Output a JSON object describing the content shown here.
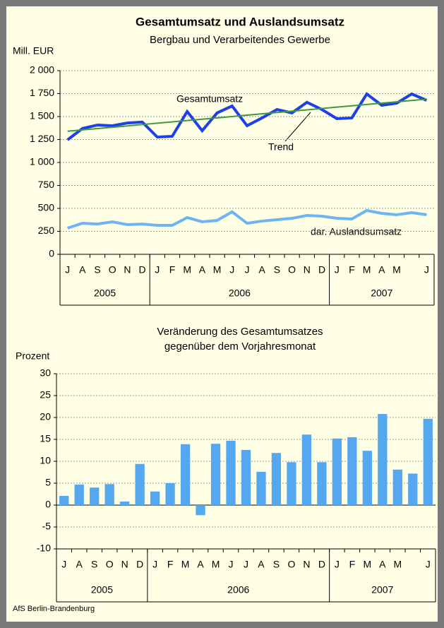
{
  "chart_data": [
    {
      "type": "line",
      "title": "Gesamtumsatz und Auslandsumsatz",
      "subtitle": "Bergbau und Verarbeitendes Gewerbe",
      "y_label": "Mill. EUR",
      "categories": [
        "J",
        "A",
        "S",
        "O",
        "N",
        "D",
        "J",
        "F",
        "M",
        "A",
        "M",
        "J",
        "J",
        "A",
        "S",
        "O",
        "N",
        "D",
        "J",
        "F",
        "M",
        "A",
        "M",
        null,
        "J"
      ],
      "category_groups": [
        {
          "label": "2005",
          "span": 6
        },
        {
          "label": "2006",
          "span": 12
        },
        {
          "label": "2007",
          "span": 7
        }
      ],
      "series": [
        {
          "name": "Gesamtumsatz",
          "color": "#1f3fe8",
          "width": 4,
          "values": [
            1246,
            1370,
            1408,
            1400,
            1430,
            1440,
            1277,
            1285,
            1555,
            1346,
            1540,
            1615,
            1400,
            1485,
            1577,
            1540,
            1655,
            1577,
            1477,
            1485,
            1746,
            1623,
            1646,
            1746,
            1677
          ]
        },
        {
          "name": "Trend",
          "color": "#3c9a3c",
          "width": 2,
          "values": [
            1340,
            1355,
            1369,
            1384,
            1398,
            1413,
            1428,
            1442,
            1457,
            1471,
            1486,
            1500,
            1515,
            1530,
            1544,
            1559,
            1573,
            1588,
            1603,
            1617,
            1632,
            1646,
            1661,
            1675,
            1690
          ]
        },
        {
          "name": "dar. Auslandsumsatz",
          "color": "#6fb4f2",
          "width": 4,
          "values": [
            285,
            338,
            330,
            354,
            323,
            330,
            315,
            315,
            400,
            354,
            369,
            462,
            338,
            362,
            377,
            392,
            423,
            415,
            392,
            385,
            477,
            446,
            431,
            454,
            431
          ]
        }
      ],
      "ylim": [
        0,
        2000
      ],
      "yticks": [
        0,
        250,
        500,
        750,
        {
          "value": 1000,
          "label": "1 000"
        },
        {
          "value": 1250,
          "label": "1 250"
        },
        {
          "value": 1500,
          "label": "1 500"
        },
        {
          "value": 1750,
          "label": "1 750"
        },
        {
          "value": 2000,
          "label": "2 000"
        }
      ],
      "grid": true
    },
    {
      "type": "bar",
      "title": [
        "Veränderung des Gesamtumsatzes",
        "gegenüber dem Vorjahresmonat"
      ],
      "y_label": "Prozent",
      "categories": [
        "J",
        "A",
        "S",
        "O",
        "N",
        "D",
        "J",
        "F",
        "M",
        "A",
        "M",
        "J",
        "J",
        "A",
        "S",
        "O",
        "N",
        "D",
        "J",
        "F",
        "M",
        "A",
        "M",
        null,
        "J"
      ],
      "category_groups": [
        {
          "label": "2005",
          "span": 6
        },
        {
          "label": "2006",
          "span": 12
        },
        {
          "label": "2007",
          "span": 7
        }
      ],
      "color": "#55a8f0",
      "values": [
        2.1,
        4.7,
        4.0,
        4.8,
        0.8,
        9.4,
        3.1,
        5.0,
        13.9,
        -2.3,
        14.0,
        14.7,
        12.6,
        7.6,
        11.9,
        9.8,
        16.1,
        9.8,
        15.2,
        15.5,
        12.4,
        20.8,
        8.1,
        7.2,
        19.7
      ],
      "ylim": [
        -10,
        30
      ],
      "yticks": [
        -10,
        -5,
        0,
        5,
        10,
        15,
        20,
        25,
        30
      ],
      "grid": true
    }
  ],
  "footer": "AfS Berlin-Brandenburg"
}
